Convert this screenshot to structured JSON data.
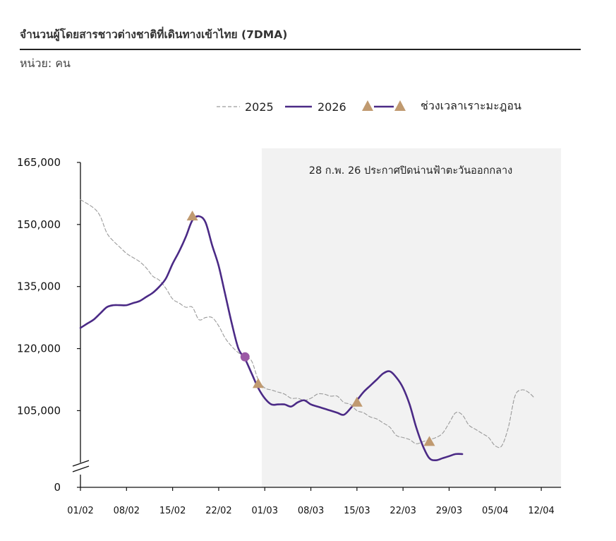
{
  "header": {
    "title": "จำนวนผู้โดยสารชาวต่างชาติที่เดินทางเข้าไทย   (7DMA)",
    "unit": "หน่วย: คน"
  },
  "chart_data": {
    "type": "line",
    "title": "จำนวนผู้โดยสารชาวต่างชาติที่เดินทางเข้าไทย (7DMA)",
    "ylabel": "หน่วย: คน",
    "ylim": [
      0,
      165000
    ],
    "y_break": true,
    "y_axis_scale_start": 95000,
    "yticks": [
      0,
      105000,
      120000,
      135000,
      150000,
      165000
    ],
    "ytick_labels": [
      "0",
      "105,000",
      "120,000",
      "135,000",
      "150,000",
      "165,000"
    ],
    "xticks": [
      0,
      7,
      14,
      21,
      28,
      35,
      42,
      49,
      56,
      63,
      70
    ],
    "xtick_labels": [
      "01/02",
      "08/02",
      "15/02",
      "22/02",
      "01/03",
      "08/03",
      "15/03",
      "22/03",
      "29/03",
      "05/04",
      "12/04"
    ],
    "x_range": [
      0,
      73
    ],
    "legend": {
      "position": "top-right",
      "entries": [
        {
          "name": "2025",
          "style": "dashed",
          "color": "#9a9a9a"
        },
        {
          "name": "2026",
          "style": "solid",
          "color": "#4b2a86"
        },
        {
          "name": "ช่วงเวลาเราะมะฎอน",
          "style": "triangle-markers",
          "color": "#c09a70"
        }
      ]
    },
    "shaded_region": {
      "x_start": 27,
      "x_end": 73,
      "color": "#f2f2f2",
      "label": "28 ก.พ. 26 ประกาศปิดน่านฟ้าตะวันออกกลาง"
    },
    "series": [
      {
        "name": "2025",
        "style": "dashed",
        "color": "#9a9a9a",
        "points": [
          [
            0,
            156000
          ],
          [
            2,
            154000
          ],
          [
            3,
            152000
          ],
          [
            4,
            148000
          ],
          [
            5,
            146000
          ],
          [
            6,
            144500
          ],
          [
            7,
            143000
          ],
          [
            8,
            142000
          ],
          [
            9,
            141000
          ],
          [
            10,
            139500
          ],
          [
            11,
            137500
          ],
          [
            12,
            136500
          ],
          [
            13,
            134500
          ],
          [
            14,
            132000
          ],
          [
            15,
            131000
          ],
          [
            16,
            130000
          ],
          [
            17,
            130000
          ],
          [
            18,
            127000
          ],
          [
            19,
            127500
          ],
          [
            20,
            127500
          ],
          [
            21,
            125500
          ],
          [
            22,
            122500
          ],
          [
            23,
            120500
          ],
          [
            24,
            119000
          ],
          [
            25,
            118000
          ],
          [
            26,
            117000
          ],
          [
            27,
            112500
          ],
          [
            28,
            110500
          ],
          [
            29,
            110000
          ],
          [
            30,
            109500
          ],
          [
            31,
            109000
          ],
          [
            32,
            108000
          ],
          [
            33,
            108000
          ],
          [
            34,
            107500
          ],
          [
            35,
            108000
          ],
          [
            36,
            109000
          ],
          [
            37,
            109000
          ],
          [
            38,
            108500
          ],
          [
            39,
            108500
          ],
          [
            40,
            107000
          ],
          [
            41,
            106500
          ],
          [
            42,
            105000
          ],
          [
            43,
            104500
          ],
          [
            44,
            103500
          ],
          [
            45,
            103000
          ],
          [
            46,
            102000
          ],
          [
            47,
            101000
          ],
          [
            48,
            99000
          ],
          [
            49,
            98500
          ],
          [
            50,
            98000
          ],
          [
            51,
            97000
          ],
          [
            52,
            97500
          ],
          [
            53,
            98000
          ],
          [
            54,
            98500
          ],
          [
            55,
            99500
          ],
          [
            56,
            102000
          ],
          [
            57,
            104500
          ],
          [
            58,
            104000
          ],
          [
            59,
            101500
          ],
          [
            60,
            100500
          ],
          [
            61,
            99500
          ],
          [
            62,
            98500
          ],
          [
            63,
            96500
          ],
          [
            64,
            96500
          ],
          [
            65,
            101000
          ],
          [
            66,
            108500
          ],
          [
            67,
            110000
          ],
          [
            68,
            109500
          ],
          [
            69,
            108000
          ]
        ]
      },
      {
        "name": "2026",
        "style": "solid",
        "color": "#4b2a86",
        "points": [
          [
            0,
            125000
          ],
          [
            1,
            126000
          ],
          [
            2,
            127000
          ],
          [
            3,
            128500
          ],
          [
            4,
            130000
          ],
          [
            5,
            130500
          ],
          [
            6,
            130500
          ],
          [
            7,
            130500
          ],
          [
            8,
            131000
          ],
          [
            9,
            131500
          ],
          [
            10,
            132500
          ],
          [
            11,
            133500
          ],
          [
            12,
            135000
          ],
          [
            13,
            137000
          ],
          [
            14,
            140500
          ],
          [
            15,
            143500
          ],
          [
            16,
            147000
          ],
          [
            17,
            151000
          ],
          [
            18,
            152000
          ],
          [
            19,
            150500
          ],
          [
            20,
            145000
          ],
          [
            21,
            140000
          ],
          [
            22,
            133000
          ],
          [
            23,
            126000
          ],
          [
            24,
            120000
          ],
          [
            25,
            117500
          ],
          [
            26,
            114000
          ],
          [
            27,
            110500
          ],
          [
            28,
            108000
          ],
          [
            29,
            106500
          ],
          [
            30,
            106500
          ],
          [
            31,
            106500
          ],
          [
            32,
            106000
          ],
          [
            33,
            107000
          ],
          [
            34,
            107500
          ],
          [
            35,
            106500
          ],
          [
            36,
            106000
          ],
          [
            37,
            105500
          ],
          [
            38,
            105000
          ],
          [
            39,
            104500
          ],
          [
            40,
            104000
          ],
          [
            41,
            105500
          ],
          [
            42,
            107500
          ],
          [
            43,
            109500
          ],
          [
            44,
            111000
          ],
          [
            45,
            112500
          ],
          [
            46,
            114000
          ],
          [
            47,
            114500
          ],
          [
            48,
            113000
          ],
          [
            49,
            110500
          ],
          [
            50,
            106500
          ],
          [
            51,
            101000
          ],
          [
            52,
            96500
          ],
          [
            53,
            93500
          ],
          [
            54,
            93000
          ],
          [
            55,
            93500
          ],
          [
            56,
            94000
          ],
          [
            57,
            94500
          ],
          [
            58,
            94500
          ]
        ]
      }
    ],
    "markers": [
      {
        "label": "ช่วงเวลาเราะมะฎอน",
        "shape": "triangle",
        "color": "#c09a70",
        "x": 17,
        "y": 152000
      },
      {
        "label": "ช่วงเวลาเราะมะฎอน",
        "shape": "triangle",
        "color": "#c09a70",
        "x": 27,
        "y": 111500
      },
      {
        "label": "ช่วงเวลาเราะมะฎอน",
        "shape": "triangle",
        "color": "#c09a70",
        "x": 42,
        "y": 107000
      },
      {
        "label": "ช่วงเวลาเราะมะฎอน",
        "shape": "triangle",
        "color": "#c09a70",
        "x": 53,
        "y": 97500
      },
      {
        "label": "",
        "shape": "circle",
        "color": "#9b59a6",
        "x": 25,
        "y": 118000
      }
    ]
  }
}
